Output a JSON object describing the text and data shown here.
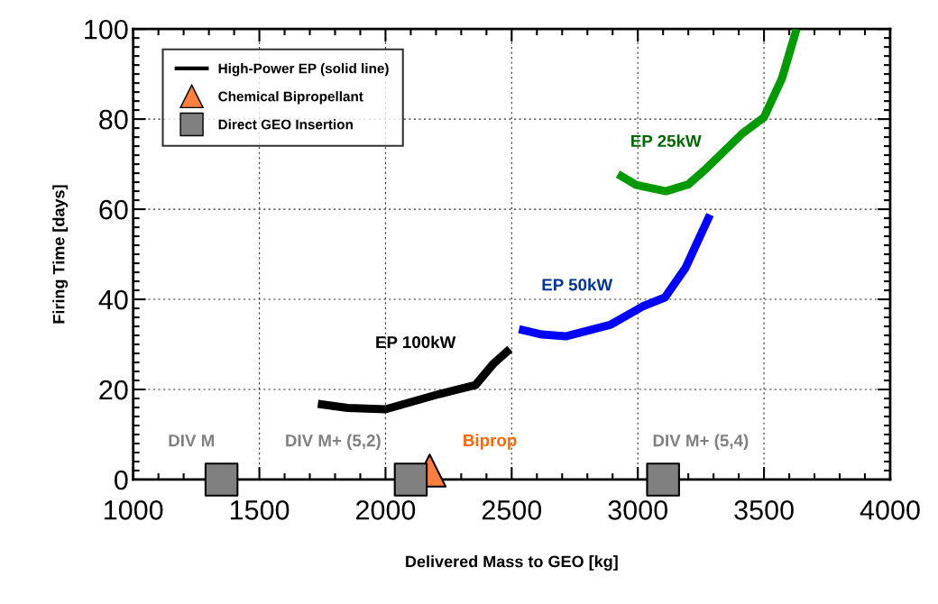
{
  "chart_data": {
    "type": "line",
    "xlabel": "Delivered Mass to GEO [kg]",
    "ylabel": "Firing Time [days]",
    "xlim": [
      1000,
      4000
    ],
    "xticks": [
      1000,
      1500,
      2000,
      2500,
      3000,
      3500,
      4000
    ],
    "ylim": [
      0,
      100
    ],
    "yticks": [
      0,
      20,
      40,
      60,
      80,
      100
    ],
    "grid": true,
    "legend": "top left",
    "line_style": "solid",
    "series": [
      {
        "name": "High-Power EP (solid line)",
        "color": "#000000",
        "x": [
          1732,
          1850,
          2000,
          2214,
          2357,
          2429,
          2493
        ],
        "values": [
          16.8,
          15.9,
          15.6,
          19,
          21,
          25.8,
          29
        ]
      },
      {
        "color": "#0000ff",
        "x": [
          2529,
          2620,
          2714,
          2893,
          3018,
          3107,
          3189,
          3286
        ],
        "values": [
          33.4,
          32.2,
          31.8,
          34.4,
          38.4,
          40.4,
          47,
          58.8
        ]
      },
      {
        "color": "#009900",
        "x": [
          2921,
          2993,
          3111,
          3200,
          3271,
          3414,
          3500,
          3571,
          3629
        ],
        "values": [
          67.8,
          65.4,
          64,
          65.5,
          69,
          76.8,
          80.4,
          89,
          100
        ]
      },
      {
        "name": "Chemical Bipropellant",
        "type": "scatter",
        "marker": "triangle",
        "color": "#ff7f3f",
        "x": [
          2175
        ],
        "values": [
          2
        ]
      },
      {
        "name": "Direct GEO Insertion",
        "type": "scatter",
        "marker": "square",
        "color": "#808080",
        "x": [
          1350,
          2100,
          3100
        ],
        "values": [
          0,
          0,
          0
        ]
      }
    ],
    "annotations": [
      {
        "text": "EP 100kW",
        "x": 2357,
        "y": 21
      },
      {
        "text": "EP 50kW",
        "x": 2714,
        "y": 31.8
      },
      {
        "text": "EP 25kW",
        "x": 3111,
        "y": 64
      },
      {
        "text": "DIV M",
        "x": 1350,
        "y": 0
      },
      {
        "text": "DIV M+ (5,2)",
        "x": 2100,
        "y": 0
      },
      {
        "text": "Biprop",
        "x": 2175,
        "y": 2
      },
      {
        "text": "DIV M+ (5,4)",
        "x": 3100,
        "y": 0
      }
    ]
  }
}
